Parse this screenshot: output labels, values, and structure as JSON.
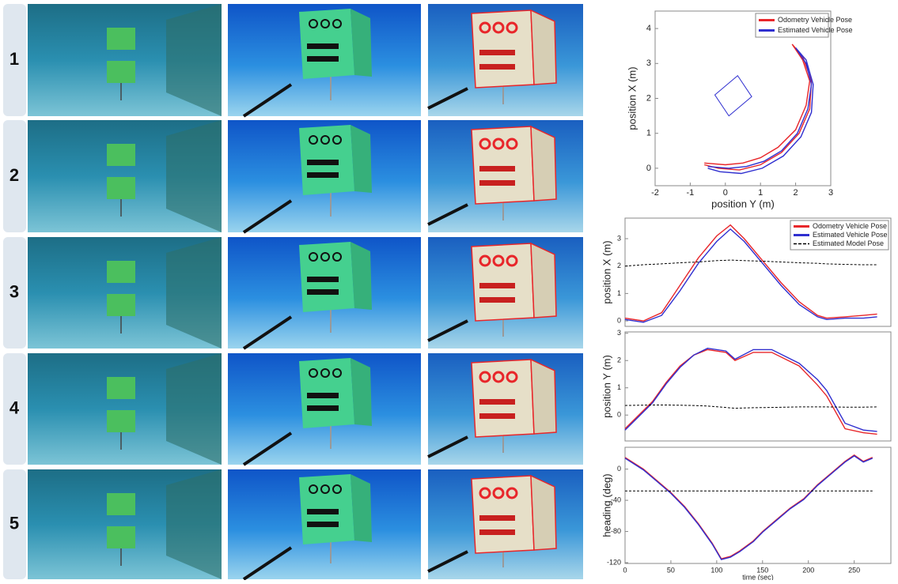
{
  "rows": [
    "1",
    "2",
    "3",
    "4",
    "5"
  ],
  "chart_data": [
    {
      "type": "line",
      "xlabel": "position Y (m)",
      "ylabel": "position X (m)",
      "xlim": [
        -2,
        3
      ],
      "ylim": [
        -0.5,
        4.5
      ],
      "xticks": [
        -2,
        -1,
        0,
        1,
        2,
        3
      ],
      "yticks": [
        0,
        1,
        2,
        3,
        4
      ],
      "legend": "upper right",
      "series": [
        {
          "name": "Odometry Vehicle Pose",
          "color": "#e8262a",
          "x": [
            -0.6,
            0,
            0.5,
            1,
            1.5,
            2,
            2.3,
            2.4,
            2.2,
            1.9,
            2.2,
            2.45,
            2.4,
            2.1,
            1.6,
            1,
            0.4,
            -0.2,
            -0.6
          ],
          "values": [
            0.15,
            0.1,
            0.15,
            0.3,
            0.6,
            1.1,
            1.8,
            2.5,
            3.1,
            3.55,
            3.2,
            2.5,
            1.7,
            1.0,
            0.45,
            0.1,
            -0.05,
            0.0,
            0.1
          ]
        },
        {
          "name": "Estimated Vehicle Pose",
          "color": "#2f2fd0",
          "x": [
            -0.5,
            0.1,
            0.6,
            1.1,
            1.6,
            2.05,
            2.35,
            2.45,
            2.3,
            2.0,
            2.3,
            2.5,
            2.45,
            2.15,
            1.65,
            1.05,
            0.45,
            -0.15,
            -0.5
          ],
          "values": [
            0.05,
            0.0,
            0.05,
            0.2,
            0.5,
            1.0,
            1.7,
            2.4,
            3.0,
            3.45,
            3.1,
            2.4,
            1.6,
            0.9,
            0.35,
            0.0,
            -0.15,
            -0.1,
            0.0
          ]
        }
      ]
    },
    {
      "type": "line",
      "ylabel": "position X (m)",
      "xlim": [
        0,
        290
      ],
      "ylim": [
        -0.2,
        3.75
      ],
      "yticks": [
        0,
        1,
        2,
        3
      ],
      "legend": "upper right",
      "x": [
        0,
        20,
        40,
        60,
        80,
        100,
        115,
        130,
        150,
        170,
        190,
        210,
        220,
        240,
        260,
        275
      ],
      "series": [
        {
          "name": "Odometry Vehicle Pose",
          "color": "#e8262a",
          "values": [
            0.1,
            0.0,
            0.3,
            1.3,
            2.3,
            3.1,
            3.5,
            3.0,
            2.2,
            1.4,
            0.7,
            0.2,
            0.1,
            0.15,
            0.2,
            0.25
          ]
        },
        {
          "name": "Estimated Vehicle Pose",
          "color": "#2f2fd0",
          "values": [
            0.05,
            -0.05,
            0.2,
            1.1,
            2.1,
            2.9,
            3.35,
            2.9,
            2.1,
            1.3,
            0.6,
            0.15,
            0.05,
            0.1,
            0.1,
            0.15
          ]
        },
        {
          "name": "Estimated Model Pose",
          "color": "#000000",
          "dash": true,
          "values": [
            2.0,
            2.05,
            2.08,
            2.12,
            2.15,
            2.2,
            2.22,
            2.2,
            2.18,
            2.15,
            2.12,
            2.1,
            2.08,
            2.06,
            2.05,
            2.05
          ]
        }
      ]
    },
    {
      "type": "line",
      "ylabel": "position Y (m)",
      "xlim": [
        0,
        290
      ],
      "ylim": [
        -0.95,
        3.05
      ],
      "yticks": [
        0,
        1,
        2,
        3
      ],
      "x": [
        0,
        15,
        30,
        45,
        60,
        75,
        90,
        110,
        120,
        140,
        160,
        190,
        210,
        220,
        240,
        260,
        275
      ],
      "series": [
        {
          "color": "#e8262a",
          "values": [
            -0.5,
            0.0,
            0.5,
            1.2,
            1.8,
            2.2,
            2.4,
            2.3,
            2.0,
            2.3,
            2.3,
            1.8,
            1.1,
            0.7,
            -0.5,
            -0.65,
            -0.7
          ]
        },
        {
          "color": "#2f2fd0",
          "values": [
            -0.55,
            -0.05,
            0.45,
            1.15,
            1.75,
            2.2,
            2.45,
            2.35,
            2.05,
            2.4,
            2.4,
            1.9,
            1.3,
            0.9,
            -0.3,
            -0.55,
            -0.6
          ]
        },
        {
          "color": "#000000",
          "dash": true,
          "values": [
            0.35,
            0.36,
            0.37,
            0.37,
            0.36,
            0.35,
            0.33,
            0.28,
            0.25,
            0.27,
            0.28,
            0.3,
            0.3,
            0.3,
            0.29,
            0.29,
            0.3
          ]
        }
      ]
    },
    {
      "type": "line",
      "ylabel": "heading (deg)",
      "xlabel": "time (sec)",
      "xlim": [
        0,
        290
      ],
      "ylim": [
        -121,
        28
      ],
      "xticks": [
        0,
        50,
        100,
        150,
        200,
        250
      ],
      "yticks": [
        0,
        -40,
        -80,
        -120
      ],
      "x": [
        0,
        20,
        35,
        50,
        65,
        80,
        95,
        105,
        115,
        125,
        140,
        150,
        165,
        180,
        195,
        210,
        225,
        240,
        250,
        260,
        270
      ],
      "series": [
        {
          "color": "#e8262a",
          "values": [
            15,
            0,
            -15,
            -30,
            -48,
            -70,
            -95,
            -115,
            -112,
            -105,
            -92,
            -80,
            -65,
            -50,
            -38,
            -20,
            -5,
            10,
            18,
            10,
            15
          ]
        },
        {
          "color": "#2f2fd0",
          "values": [
            14,
            -1,
            -16,
            -31,
            -49,
            -71,
            -96,
            -116,
            -113,
            -106,
            -93,
            -81,
            -66,
            -51,
            -39,
            -21,
            -6,
            9,
            17,
            9,
            14
          ]
        },
        {
          "color": "#000000",
          "dash": true,
          "values": [
            -28,
            -28,
            -28,
            -28,
            -28,
            -28,
            -28,
            -28,
            -28,
            -28,
            -28,
            -28,
            -28,
            -28,
            -28,
            -28,
            -28,
            -28,
            -28,
            -28,
            -28
          ]
        }
      ]
    }
  ]
}
